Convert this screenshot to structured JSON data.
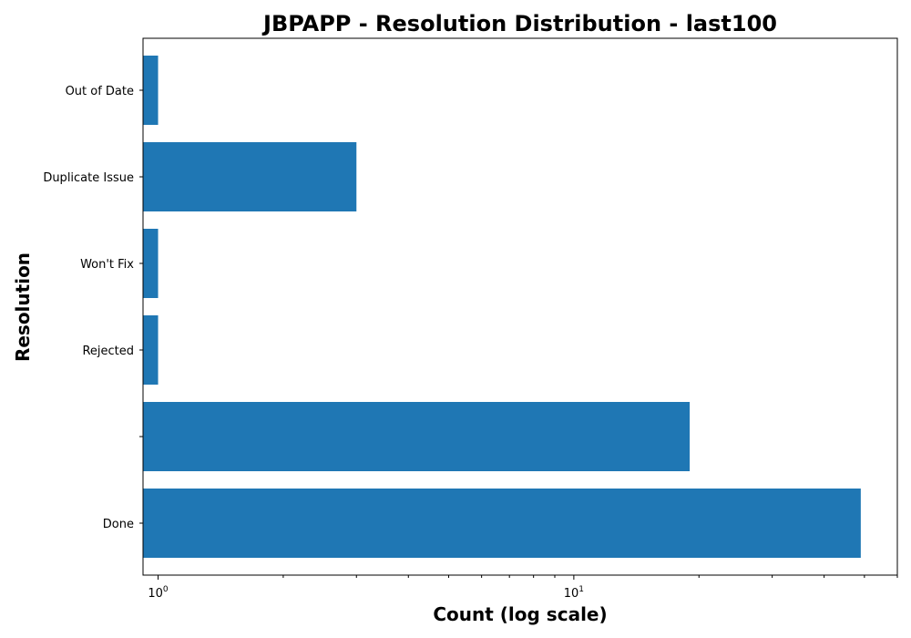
{
  "chart_data": {
    "type": "bar",
    "orientation": "horizontal",
    "title": "JBPAPP - Resolution Distribution - last100",
    "xlabel": "Count (log scale)",
    "ylabel": "Resolution",
    "x_scale": "log",
    "xlim": [
      0.92,
      60
    ],
    "x_ticks": [
      {
        "value": 1,
        "base": "10",
        "exp": "0"
      },
      {
        "value": 10,
        "base": "10",
        "exp": "1"
      }
    ],
    "categories": [
      "Done",
      "",
      "Rejected",
      "Won't Fix",
      "Duplicate Issue",
      "Out of Date"
    ],
    "values": [
      49,
      19,
      1,
      1,
      3,
      1
    ],
    "bar_color": "#1f77b4",
    "grid": false,
    "legend": "none"
  }
}
